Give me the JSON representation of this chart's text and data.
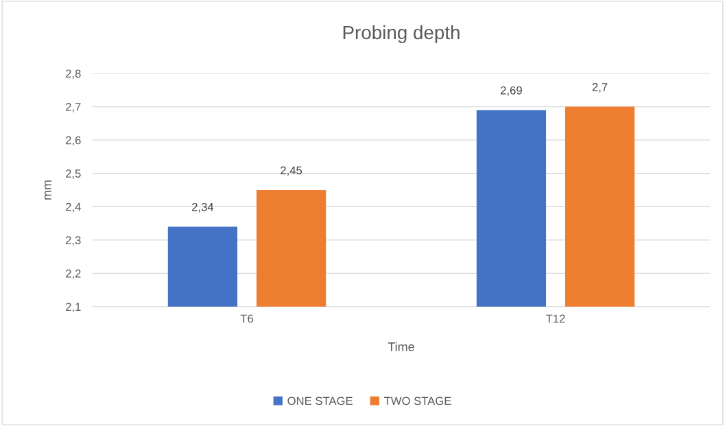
{
  "chart_data": {
    "type": "bar",
    "title": "Probing depth",
    "xlabel": "Time",
    "ylabel": "mm",
    "categories": [
      "T6",
      "T12"
    ],
    "series": [
      {
        "name": "ONE STAGE",
        "color": "#4472c4",
        "values": [
          2.34,
          2.69
        ],
        "value_labels": [
          "2,34",
          "2,69"
        ]
      },
      {
        "name": "TWO STAGE",
        "color": "#ed7d31",
        "values": [
          2.45,
          2.7
        ],
        "value_labels": [
          "2,45",
          "2,7"
        ]
      }
    ],
    "ylim": [
      2.1,
      2.8
    ],
    "yticks": [
      {
        "value": 2.1,
        "label": "2,1"
      },
      {
        "value": 2.2,
        "label": "2,2"
      },
      {
        "value": 2.3,
        "label": "2,3"
      },
      {
        "value": 2.4,
        "label": "2,4"
      },
      {
        "value": 2.5,
        "label": "2,5"
      },
      {
        "value": 2.6,
        "label": "2,6"
      },
      {
        "value": 2.7,
        "label": "2,7"
      },
      {
        "value": 2.8,
        "label": "2,8"
      }
    ],
    "grid": "y",
    "legend": "bottom"
  }
}
